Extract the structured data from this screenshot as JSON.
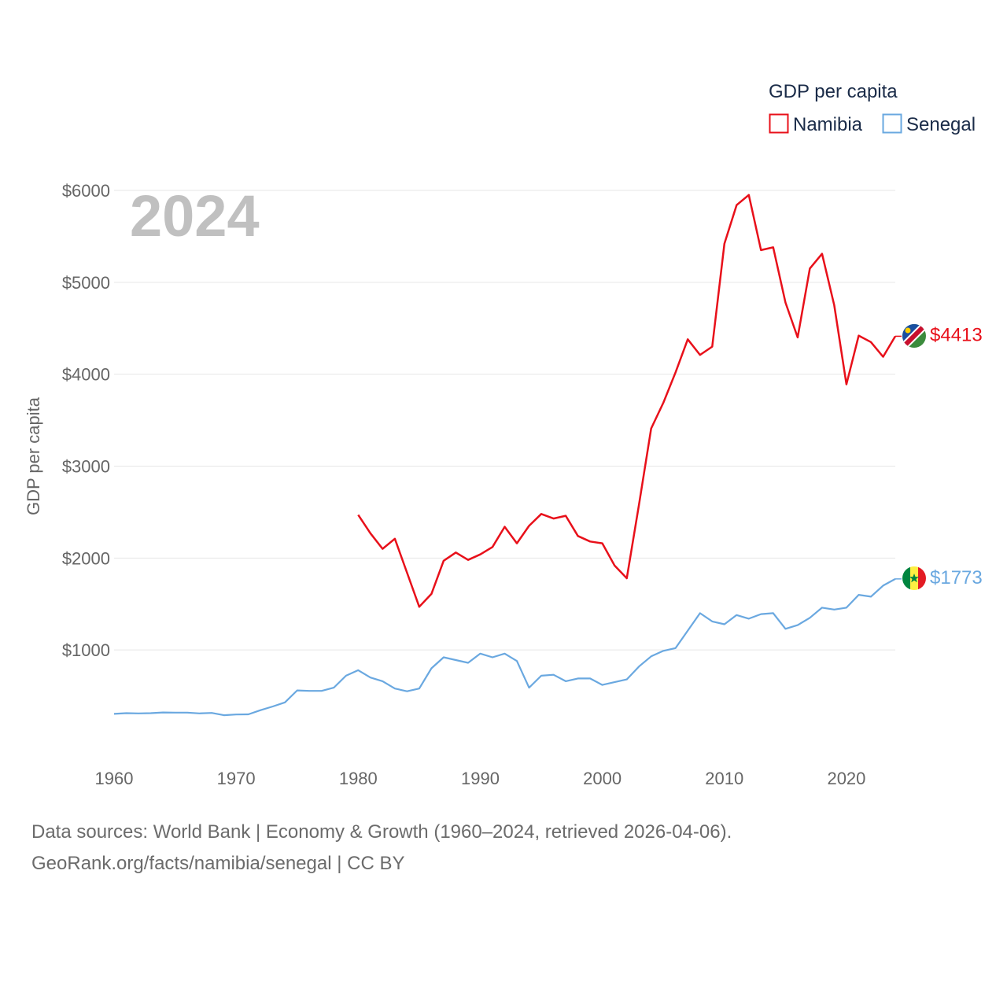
{
  "chart_data": {
    "type": "line",
    "title": "GDP per capita",
    "ylabel": "GDP per capita",
    "xlabel": "",
    "year_label": "2024",
    "xlim": [
      1960,
      2024
    ],
    "ylim": [
      0,
      6000
    ],
    "x_ticks": [
      1960,
      1970,
      1980,
      1990,
      2000,
      2010,
      2020
    ],
    "y_ticks": [
      1000,
      2000,
      3000,
      4000,
      5000,
      6000
    ],
    "y_tick_labels": [
      "$1000",
      "$2000",
      "$3000",
      "$4000",
      "$5000",
      "$6000"
    ],
    "grid": true,
    "legend": {
      "title": "GDP per capita",
      "position": "top-right"
    },
    "series": [
      {
        "name": "Namibia",
        "color": "#e8101a",
        "end_label": "$4413",
        "flag": "namibia-flag-icon",
        "x": [
          1980,
          1981,
          1982,
          1983,
          1984,
          1985,
          1986,
          1987,
          1988,
          1989,
          1990,
          1991,
          1992,
          1993,
          1994,
          1995,
          1996,
          1997,
          1998,
          1999,
          2000,
          2001,
          2002,
          2003,
          2004,
          2005,
          2006,
          2007,
          2008,
          2009,
          2010,
          2011,
          2012,
          2013,
          2014,
          2015,
          2016,
          2017,
          2018,
          2019,
          2020,
          2021,
          2022,
          2023,
          2024
        ],
        "values": [
          2470,
          2270,
          2100,
          2210,
          1840,
          1470,
          1610,
          1970,
          2060,
          1980,
          2040,
          2120,
          2340,
          2160,
          2350,
          2480,
          2430,
          2460,
          2240,
          2180,
          2160,
          1920,
          1780,
          2580,
          3410,
          3690,
          4020,
          4380,
          4210,
          4300,
          5420,
          5840,
          5950,
          5350,
          5380,
          4780,
          4400,
          5150,
          5310,
          4750,
          3890,
          4420,
          4350,
          4190,
          4413
        ]
      },
      {
        "name": "Senegal",
        "color": "#6aa8e0",
        "end_label": "$1773",
        "flag": "senegal-flag-icon",
        "x": [
          1960,
          1961,
          1962,
          1963,
          1964,
          1965,
          1966,
          1967,
          1968,
          1969,
          1970,
          1971,
          1972,
          1973,
          1974,
          1975,
          1976,
          1977,
          1978,
          1979,
          1980,
          1981,
          1982,
          1983,
          1984,
          1985,
          1986,
          1987,
          1988,
          1989,
          1990,
          1991,
          1992,
          1993,
          1994,
          1995,
          1996,
          1997,
          1998,
          1999,
          2000,
          2001,
          2002,
          2003,
          2004,
          2005,
          2006,
          2007,
          2008,
          2009,
          2010,
          2011,
          2012,
          2013,
          2014,
          2015,
          2016,
          2017,
          2018,
          2019,
          2020,
          2021,
          2022,
          2023,
          2024
        ],
        "values": [
          305,
          312,
          310,
          312,
          320,
          318,
          318,
          310,
          315,
          290,
          298,
          300,
          345,
          385,
          430,
          560,
          555,
          555,
          590,
          720,
          780,
          700,
          660,
          580,
          550,
          580,
          800,
          920,
          890,
          860,
          960,
          920,
          960,
          880,
          590,
          720,
          730,
          660,
          690,
          690,
          620,
          650,
          680,
          820,
          930,
          990,
          1020,
          1210,
          1400,
          1310,
          1280,
          1380,
          1340,
          1390,
          1400,
          1230,
          1270,
          1350,
          1460,
          1440,
          1460,
          1600,
          1580,
          1700,
          1773
        ]
      }
    ]
  },
  "footer": {
    "line1": "Data sources: World Bank | Economy & Growth (1960–2024, retrieved 2026-04-06).",
    "line2": "GeoRank.org/facts/namibia/senegal | CC BY"
  }
}
